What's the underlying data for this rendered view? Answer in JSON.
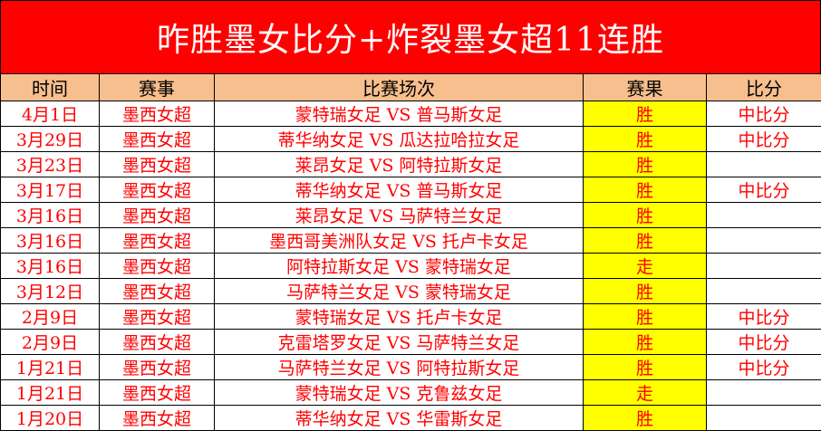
{
  "title": "昨胜墨女比分+炸裂墨女超11连胜",
  "headers": [
    "时间",
    "赛事",
    "比赛场次",
    "赛果",
    "比分"
  ],
  "colors": {
    "title_bg": "#ff0000",
    "header_bg": "#f8bf8e",
    "result_bg": "#ffff00",
    "text": "#ff0000"
  },
  "rows": [
    {
      "date": "4月1日",
      "league": "墨西女超",
      "match": "蒙特瑞女足 VS 普马斯女足",
      "result": "胜",
      "score": "中比分"
    },
    {
      "date": "3月29日",
      "league": "墨西女超",
      "match": "蒂华纳女足 VS 瓜达拉哈拉女足",
      "result": "胜",
      "score": "中比分"
    },
    {
      "date": "3月23日",
      "league": "墨西女超",
      "match": "莱昂女足 VS 阿特拉斯女足",
      "result": "胜",
      "score": ""
    },
    {
      "date": "3月17日",
      "league": "墨西女超",
      "match": "蒂华纳女足 VS 普马斯女足",
      "result": "胜",
      "score": "中比分"
    },
    {
      "date": "3月16日",
      "league": "墨西女超",
      "match": "莱昂女足 VS 马萨特兰女足",
      "result": "胜",
      "score": ""
    },
    {
      "date": "3月16日",
      "league": "墨西女超",
      "match": "墨西哥美洲队女足 VS 托卢卡女足",
      "result": "胜",
      "score": ""
    },
    {
      "date": "3月16日",
      "league": "墨西女超",
      "match": "阿特拉斯女足 VS 蒙特瑞女足",
      "result": "走",
      "score": ""
    },
    {
      "date": "3月12日",
      "league": "墨西女超",
      "match": "马萨特兰女足 VS 蒙特瑞女足",
      "result": "胜",
      "score": ""
    },
    {
      "date": "2月9日",
      "league": "墨西女超",
      "match": "蒙特瑞女足 VS 托卢卡女足",
      "result": "胜",
      "score": "中比分"
    },
    {
      "date": "2月9日",
      "league": "墨西女超",
      "match": "克雷塔罗女足 VS 马萨特兰女足",
      "result": "胜",
      "score": "中比分"
    },
    {
      "date": "1月21日",
      "league": "墨西女超",
      "match": "马萨特兰女足 VS 阿特拉斯女足",
      "result": "胜",
      "score": "中比分"
    },
    {
      "date": "1月21日",
      "league": "墨西女超",
      "match": "蒙特瑞女足 VS 克鲁兹女足",
      "result": "走",
      "score": ""
    },
    {
      "date": "1月20日",
      "league": "墨西女超",
      "match": "蒂华纳女足 VS 华雷斯女足",
      "result": "胜",
      "score": ""
    }
  ]
}
